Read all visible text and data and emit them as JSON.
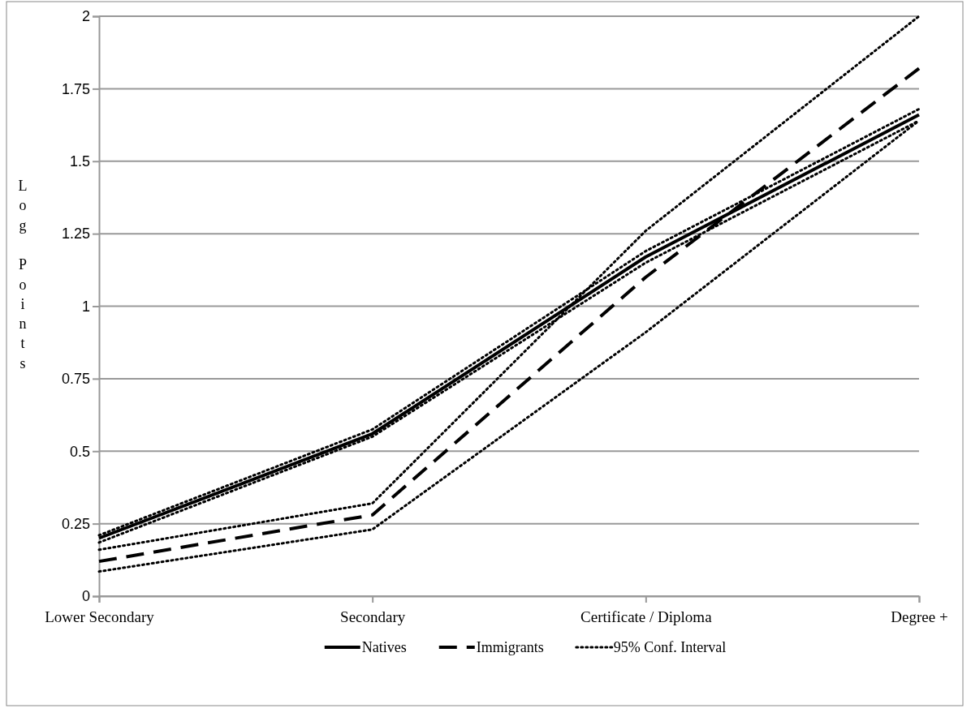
{
  "chart_data": {
    "type": "line",
    "ylabel": "Log Points",
    "categories": [
      "Lower Secondary",
      "Secondary",
      "Certificate / Diploma",
      "Degree +"
    ],
    "series": [
      {
        "name": "Natives",
        "color": "#000000",
        "line_style": "solid",
        "values": [
          0.2,
          0.56,
          1.17,
          1.66
        ]
      },
      {
        "name": "Immigrants",
        "color": "#000000",
        "line_style": "dashed",
        "values": [
          0.12,
          0.28,
          1.1,
          1.82
        ]
      },
      {
        "name": "95% Conf. Interval",
        "color": "#000000",
        "line_style": "dotted",
        "values": [
          0.21,
          0.575,
          1.19,
          1.68
        ]
      },
      {
        "color": "#000000",
        "line_style": "dotted",
        "values": [
          0.185,
          0.55,
          1.15,
          1.64
        ]
      },
      {
        "color": "#000000",
        "line_style": "dotted",
        "values": [
          0.16,
          0.32,
          1.26,
          2.0
        ]
      },
      {
        "color": "#000000",
        "line_style": "dotted",
        "values": [
          0.085,
          0.23,
          0.91,
          1.64
        ]
      }
    ],
    "ylim": [
      0,
      2
    ],
    "yticks": [
      0,
      0.25,
      0.5,
      0.75,
      1,
      1.25,
      1.5,
      1.75,
      2
    ],
    "grid": "y",
    "legend": "bottom",
    "marker": "none"
  }
}
